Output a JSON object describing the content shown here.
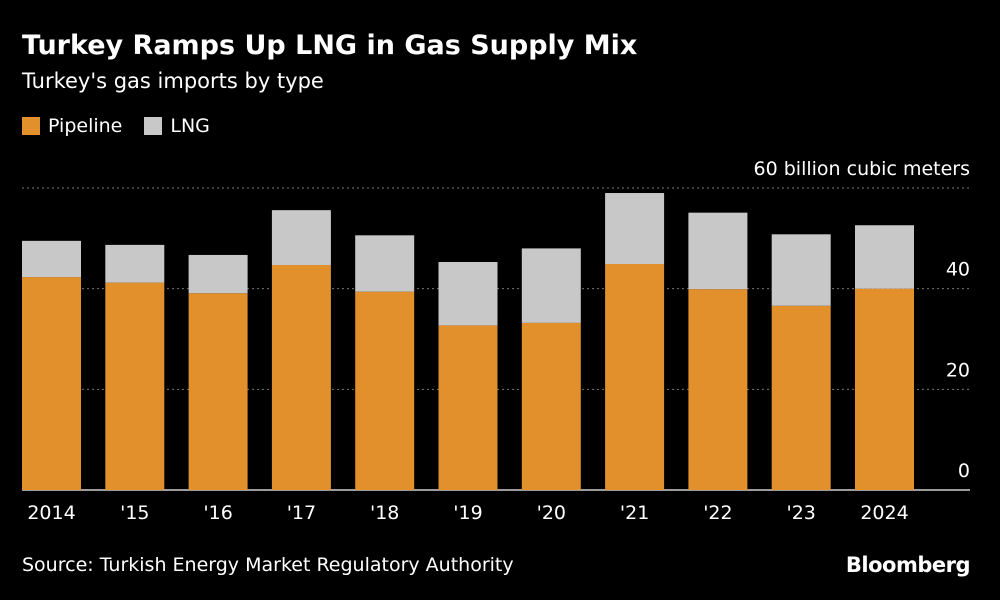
{
  "title": "Turkey Ramps Up LNG in Gas Supply Mix",
  "subtitle": "Turkey's gas imports by type",
  "source": "Source: Turkish Energy Market Regulatory Authority",
  "brand": "Bloomberg",
  "colors": {
    "pipeline": "#e2902b",
    "lng": "#c8c8c8",
    "grid": "#777777",
    "background": "#000000",
    "text": "#ffffff"
  },
  "chart_data": {
    "type": "bar",
    "stacked": true,
    "categories": [
      "2014",
      "'15",
      "'16",
      "'17",
      "'18",
      "'19",
      "'20",
      "'21",
      "'22",
      "'23",
      "2024"
    ],
    "series": [
      {
        "name": "Pipeline",
        "values": [
          42.3,
          41.2,
          39.1,
          44.7,
          39.4,
          32.7,
          33.2,
          44.9,
          39.9,
          36.6,
          40.0
        ]
      },
      {
        "name": "LNG",
        "values": [
          7.2,
          7.5,
          7.6,
          10.9,
          11.2,
          12.6,
          14.8,
          14.1,
          15.2,
          14.2,
          12.6
        ]
      }
    ],
    "ylim": [
      0,
      60
    ],
    "yticks": [
      0,
      20,
      40,
      60
    ],
    "ytick_labels": [
      "0",
      "20",
      "40",
      "60 billion cubic meters"
    ],
    "grid": true,
    "legend": "top-left"
  }
}
